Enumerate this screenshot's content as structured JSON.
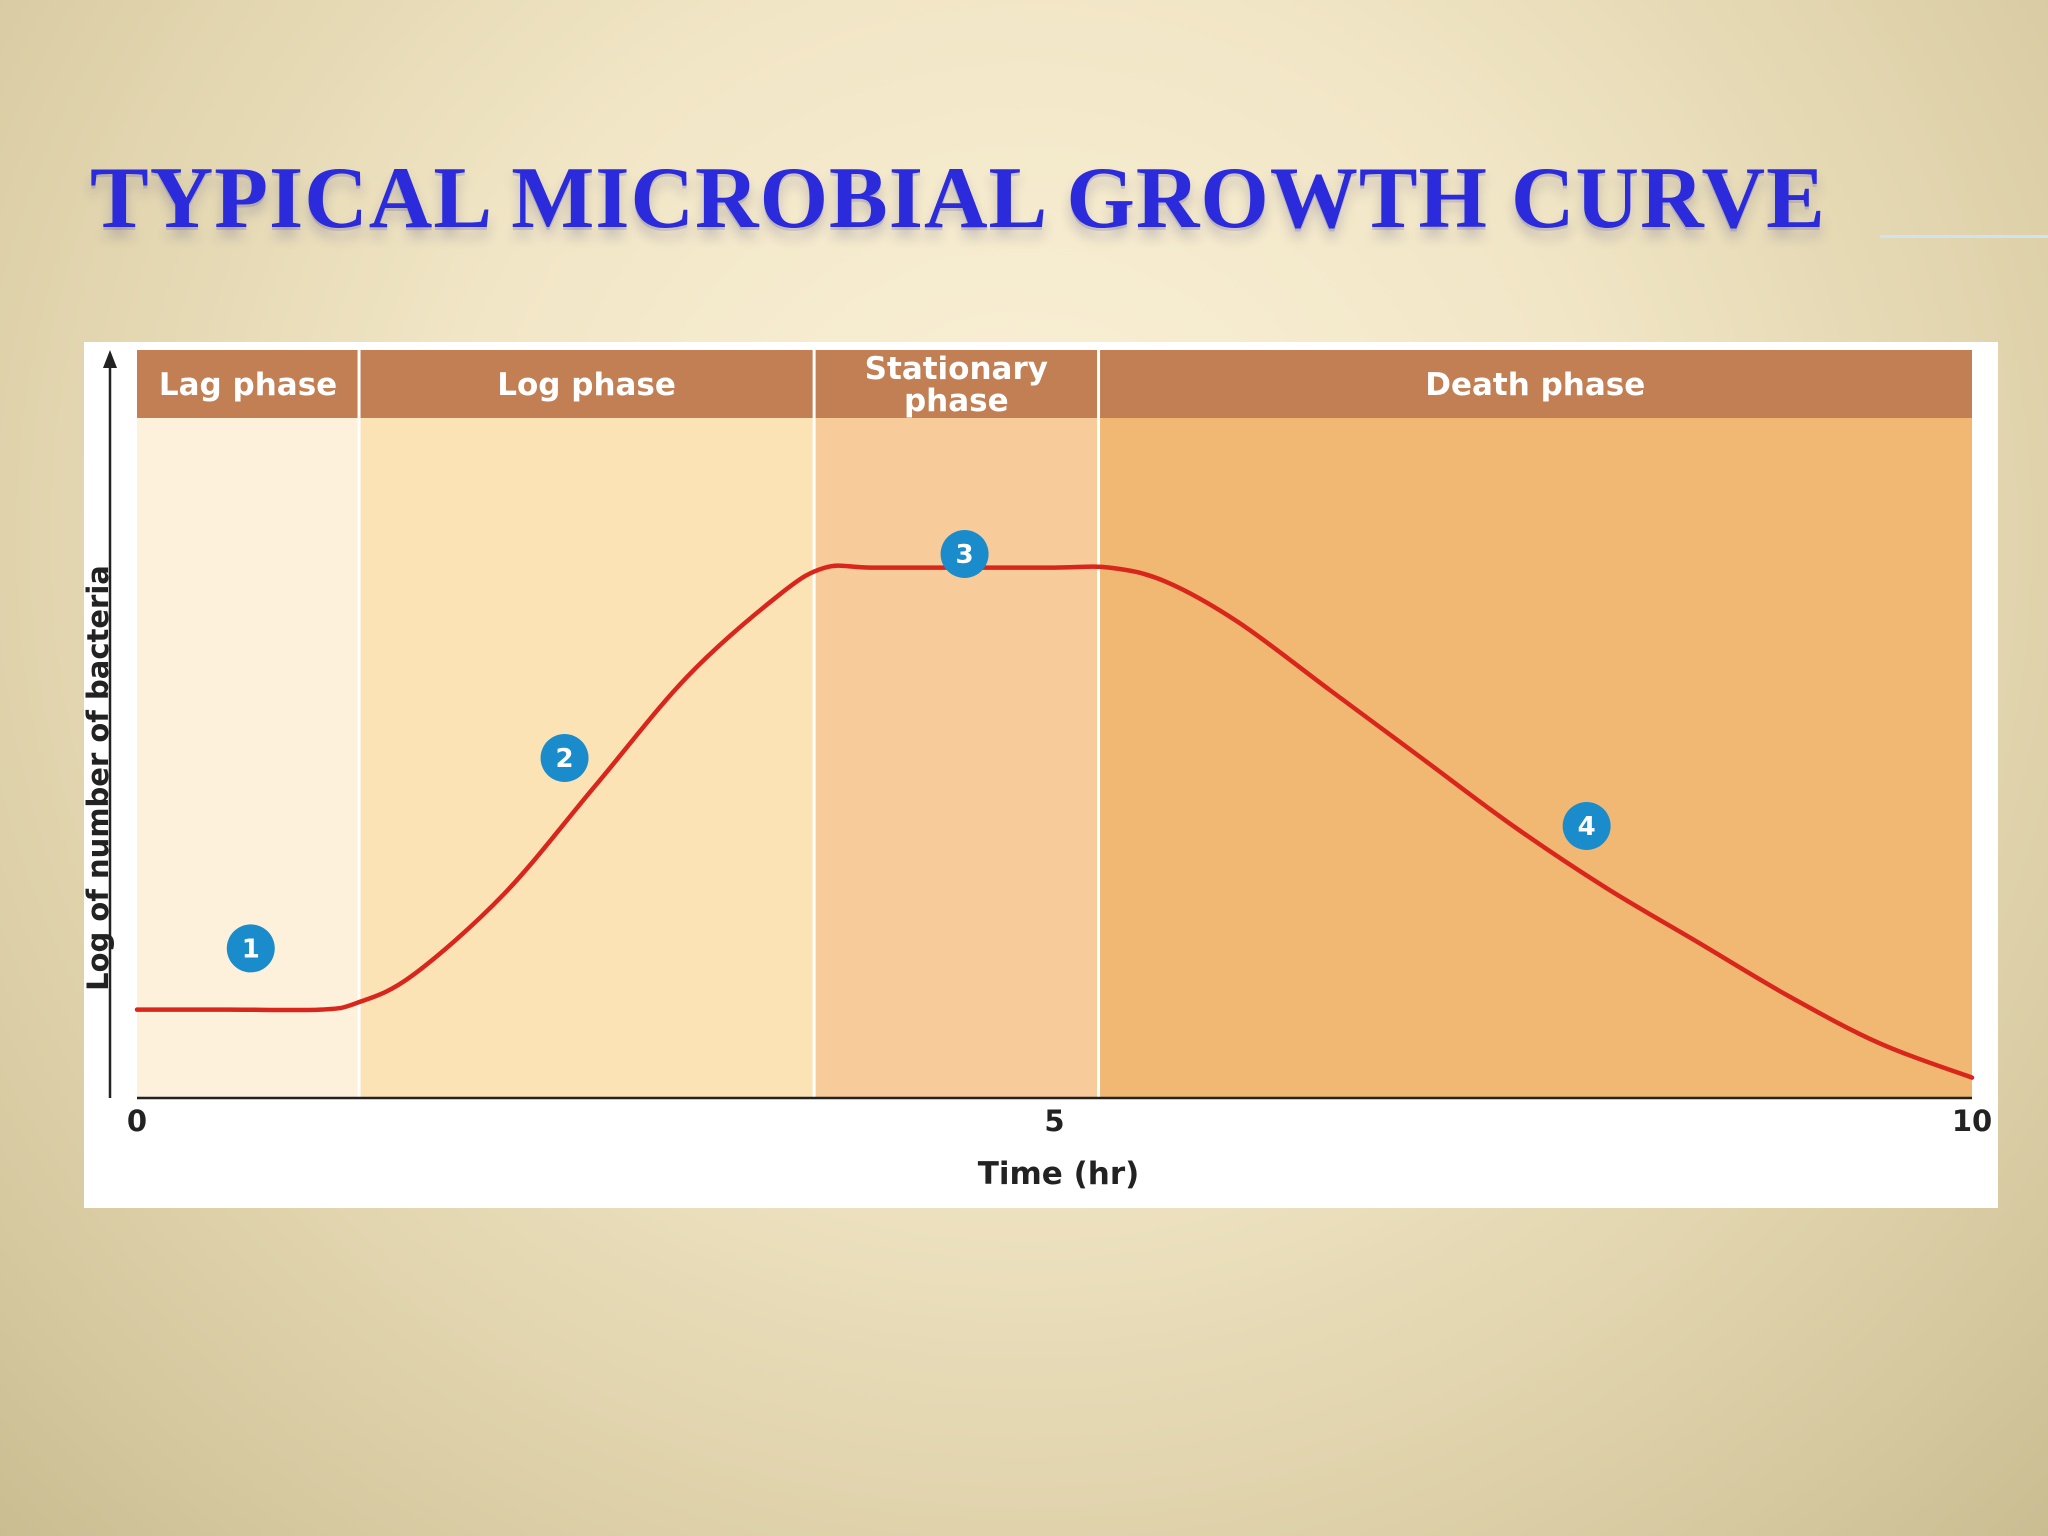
{
  "slide": {
    "title": "TYPICAL MICROBIAL GROWTH CURVE"
  },
  "chart_data": {
    "type": "line",
    "title": "",
    "xlabel": "Time (hr)",
    "ylabel": "Log of number of bacteria",
    "xlim": [
      0,
      10
    ],
    "ylim": [
      0,
      1
    ],
    "x_ticks": [
      "0",
      "5",
      "10"
    ],
    "grid": false,
    "phases": [
      {
        "label": [
          "Lag phase"
        ],
        "start": 0,
        "end": 1.21,
        "color": "#fdf1dc",
        "marker": "1",
        "marker_x": 0.62,
        "marker_y": 0.22
      },
      {
        "label": [
          "Log phase"
        ],
        "start": 1.21,
        "end": 3.69,
        "color": "#fce3b6",
        "marker": "2",
        "marker_x": 2.33,
        "marker_y": 0.5
      },
      {
        "label": [
          "Stationary",
          "phase"
        ],
        "start": 3.69,
        "end": 5.24,
        "color": "#f8cb9a",
        "marker": "3",
        "marker_x": 4.51,
        "marker_y": 0.8
      },
      {
        "label": [
          "Death phase"
        ],
        "start": 5.24,
        "end": 10,
        "color": "#f0b872",
        "marker": "4",
        "marker_x": 7.9,
        "marker_y": 0.4
      }
    ],
    "header_color": "#c27f54",
    "marker_color": "#1a8ccc",
    "series": [
      {
        "color": "#d8261c",
        "x": [
          0,
          0.5,
          1.0,
          1.2,
          1.5,
          2.0,
          2.5,
          3.0,
          3.5,
          3.75,
          4.0,
          4.5,
          5.0,
          5.3,
          5.6,
          6.0,
          6.5,
          7.0,
          7.5,
          8.0,
          8.5,
          9.0,
          9.5,
          10.0
        ],
        "y": [
          0.13,
          0.13,
          0.13,
          0.14,
          0.18,
          0.3,
          0.46,
          0.62,
          0.74,
          0.78,
          0.78,
          0.78,
          0.78,
          0.78,
          0.76,
          0.7,
          0.6,
          0.5,
          0.4,
          0.31,
          0.23,
          0.15,
          0.08,
          0.03
        ]
      }
    ]
  }
}
